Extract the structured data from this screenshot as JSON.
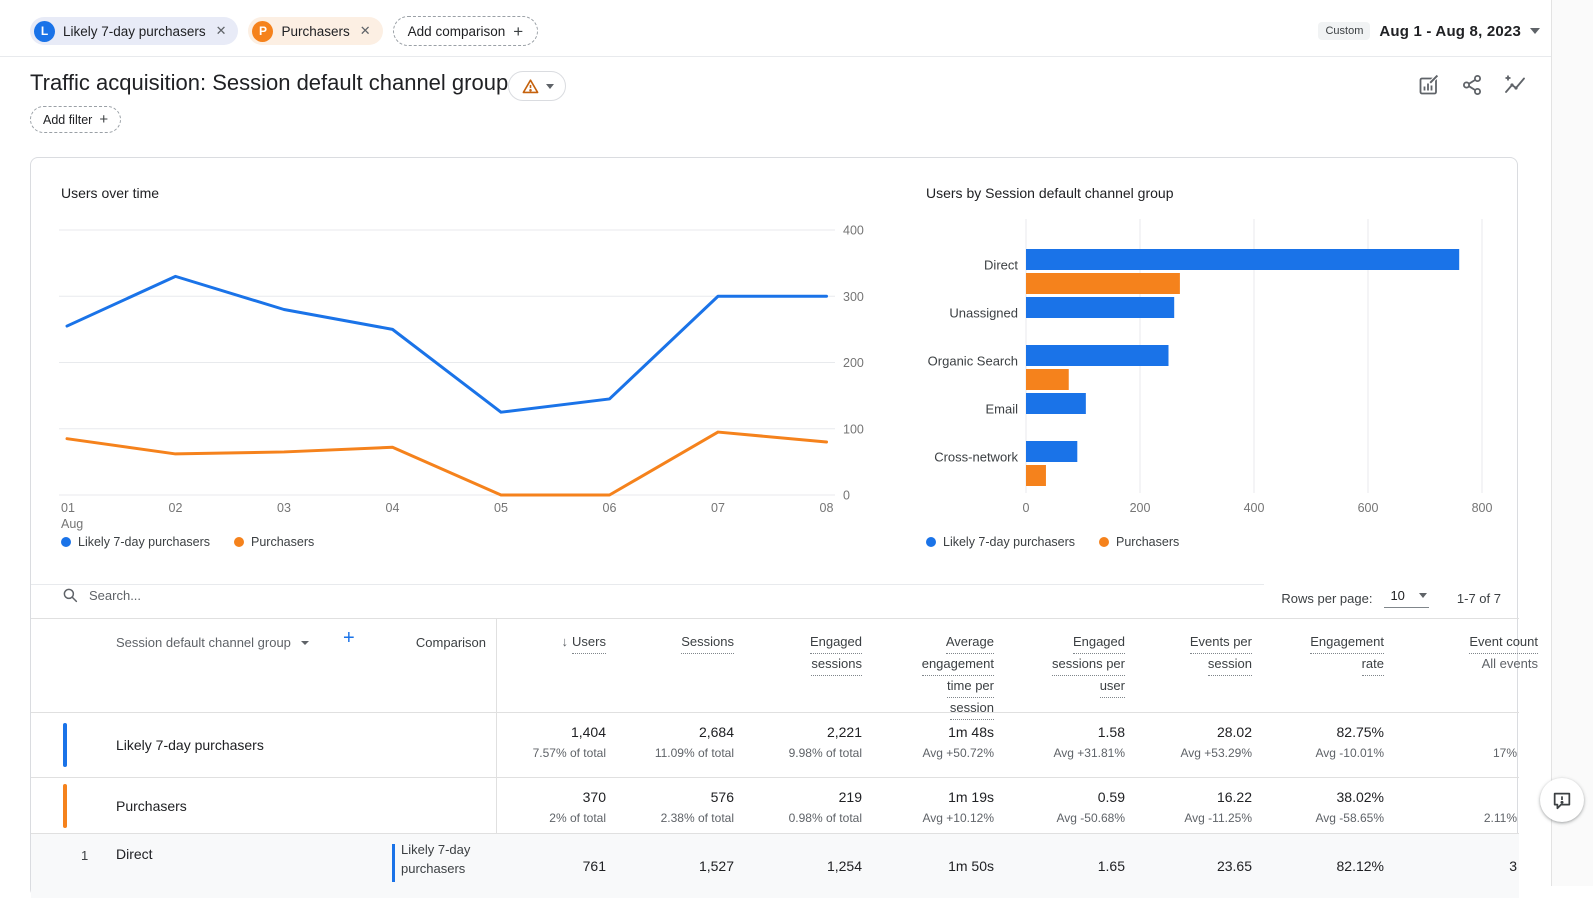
{
  "topbar": {
    "comparisons": [
      {
        "avatar": "L",
        "label": "Likely 7-day purchasers",
        "avatar_color": "#1a73e8",
        "chip_bg": "#e8ebf7"
      },
      {
        "avatar": "P",
        "label": "Purchasers",
        "avatar_color": "#f5821c",
        "chip_bg": "#fcefe3"
      }
    ],
    "add_comparison_label": "Add comparison",
    "date_badge": "Custom",
    "date_range": "Aug 1 - Aug 8, 2023"
  },
  "header": {
    "title": "Traffic acquisition: Session default channel group",
    "warning_color": "#c5610c",
    "action_icons": [
      "customize-report-icon",
      "share-icon",
      "insights-icon"
    ]
  },
  "filter_bar": {
    "add_filter_label": "Add filter"
  },
  "colors": {
    "primary_series": "#1a73e8",
    "comparison_series": "#f5821c",
    "gridline": "#e8eaed",
    "axis_label": "#757575",
    "row_divider": "#e0e0e0",
    "shaded_row_bg": "#f8f9fa"
  },
  "chart_data": [
    {
      "type": "line",
      "title": "Users over time",
      "x": [
        "01",
        "02",
        "03",
        "04",
        "05",
        "06",
        "07",
        "08"
      ],
      "x_axis_note": "Aug",
      "series": [
        {
          "name": "Likely 7-day purchasers",
          "color": "#1a73e8",
          "values": [
            255,
            330,
            280,
            250,
            125,
            145,
            300,
            300
          ]
        },
        {
          "name": "Purchasers",
          "color": "#f5821c",
          "values": [
            85,
            62,
            65,
            72,
            0,
            0,
            95,
            80
          ]
        }
      ],
      "ylim": [
        0,
        400
      ],
      "yticks": [
        0,
        100,
        200,
        300,
        400
      ],
      "y_axis_side": "right",
      "grid": true,
      "legend_position": "bottom"
    },
    {
      "type": "bar",
      "title": "Users by Session default channel group",
      "orientation": "horizontal",
      "categories": [
        "Direct",
        "Unassigned",
        "Organic Search",
        "Email",
        "Cross-network"
      ],
      "series": [
        {
          "name": "Likely 7-day purchasers",
          "color": "#1a73e8",
          "values": [
            760,
            260,
            250,
            105,
            90
          ]
        },
        {
          "name": "Purchasers",
          "color": "#f5821c",
          "values": [
            270,
            0,
            75,
            0,
            35
          ]
        }
      ],
      "xlim": [
        0,
        800
      ],
      "xticks": [
        0,
        200,
        400,
        600,
        800
      ],
      "grid": true,
      "legend_position": "bottom"
    }
  ],
  "table": {
    "search_placeholder": "Search...",
    "rows_per_page_label": "Rows per page:",
    "rows_per_page_value": "10",
    "pagination_range": "1-7 of 7",
    "dimension_header": "Session default channel group",
    "comparison_header": "Comparison",
    "metric_headers": [
      {
        "lines": [
          "Users"
        ],
        "sorted": true
      },
      {
        "lines": [
          "Sessions"
        ]
      },
      {
        "lines": [
          "Engaged",
          "sessions"
        ]
      },
      {
        "lines": [
          "Average",
          "engagement",
          "time per",
          "session"
        ]
      },
      {
        "lines": [
          "Engaged",
          "sessions per",
          "user"
        ]
      },
      {
        "lines": [
          "Events per",
          "session"
        ]
      },
      {
        "lines": [
          "Engagement",
          "rate"
        ]
      },
      {
        "lines": [
          "Event count"
        ],
        "subtitle": "All events"
      }
    ],
    "summary_rows": [
      {
        "label": "Likely 7-day purchasers",
        "accent_color": "#1a73e8",
        "metrics": [
          [
            "1,404",
            "7.57% of total"
          ],
          [
            "2,684",
            "11.09% of total"
          ],
          [
            "2,221",
            "9.98% of total"
          ],
          [
            "1m 48s",
            "Avg +50.72%"
          ],
          [
            "1.58",
            "Avg +31.81%"
          ],
          [
            "28.02",
            "Avg +53.29%"
          ],
          [
            "82.75%",
            "Avg -10.01%"
          ],
          [
            "",
            "17%"
          ]
        ]
      },
      {
        "label": "Purchasers",
        "accent_color": "#f5821c",
        "metrics": [
          [
            "370",
            "2% of total"
          ],
          [
            "576",
            "2.38% of total"
          ],
          [
            "219",
            "0.98% of total"
          ],
          [
            "1m 19s",
            "Avg +10.12%"
          ],
          [
            "0.59",
            "Avg -50.68%"
          ],
          [
            "16.22",
            "Avg -11.25%"
          ],
          [
            "38.02%",
            "Avg -58.65%"
          ],
          [
            "",
            "2.11%"
          ]
        ]
      }
    ],
    "detail_rows": [
      {
        "index": "1",
        "dimension": "Direct",
        "comparison": "Likely 7-day purchasers",
        "comparison_color": "#1a73e8",
        "metrics": [
          "761",
          "1,527",
          "1,254",
          "1m 50s",
          "1.65",
          "23.65",
          "82.12%",
          "3"
        ]
      }
    ]
  }
}
